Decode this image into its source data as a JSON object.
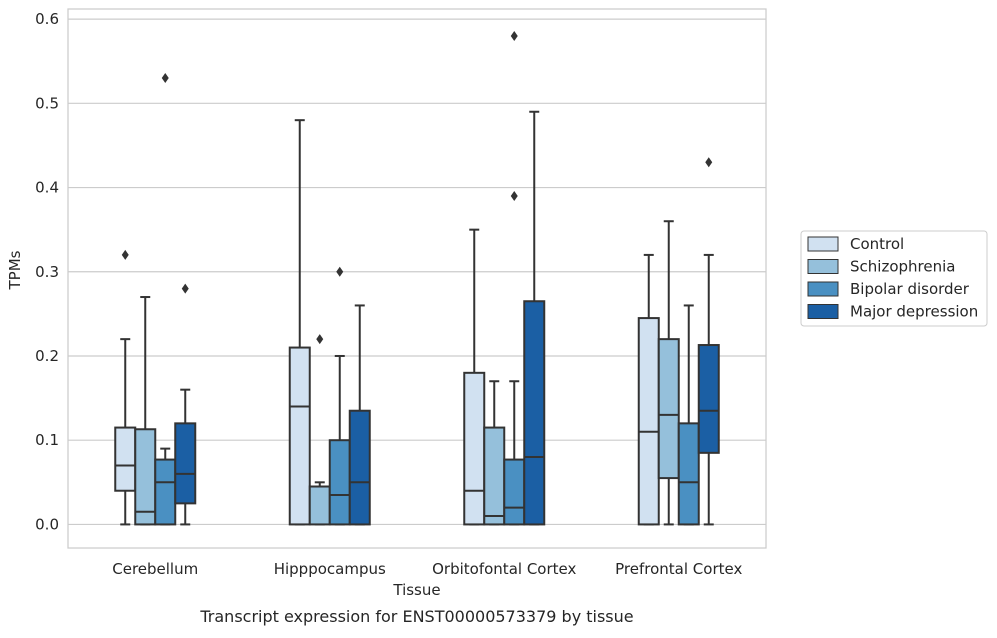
{
  "chart_data": {
    "type": "boxplot",
    "title": "",
    "caption": "Transcript expression for ENST00000573379 by tissue",
    "xlabel": "Tissue",
    "ylabel": "TPMs",
    "ylim": [
      -0.028,
      0.612
    ],
    "yticks": [
      0.0,
      0.1,
      0.2,
      0.3,
      0.4,
      0.5,
      0.6
    ],
    "ytick_labels": [
      "0.0",
      "0.1",
      "0.2",
      "0.3",
      "0.4",
      "0.5",
      "0.6"
    ],
    "grid": "horizontal",
    "legend_placement": "outside-right",
    "categories": [
      "Cerebellum",
      "Hipppocampus",
      "Orbitofontal Cortex",
      "Prefrontal Cortex"
    ],
    "series": [
      {
        "name": "Control",
        "color": "#d1e1f1",
        "boxes": [
          {
            "whislo": 0.0,
            "q1": 0.04,
            "med": 0.07,
            "q3": 0.115,
            "whishi": 0.22,
            "fliers": [
              0.32
            ]
          },
          {
            "whislo": 0.0,
            "q1": 0.0,
            "med": 0.14,
            "q3": 0.21,
            "whishi": 0.48,
            "fliers": []
          },
          {
            "whislo": 0.0,
            "q1": 0.0,
            "med": 0.04,
            "q3": 0.18,
            "whishi": 0.35,
            "fliers": []
          },
          {
            "whislo": 0.0,
            "q1": 0.0,
            "med": 0.11,
            "q3": 0.245,
            "whishi": 0.32,
            "fliers": []
          }
        ]
      },
      {
        "name": "Schizophrenia",
        "color": "#95c0db",
        "boxes": [
          {
            "whislo": 0.0,
            "q1": 0.0,
            "med": 0.015,
            "q3": 0.113,
            "whishi": 0.27,
            "fliers": []
          },
          {
            "whislo": 0.0,
            "q1": 0.0,
            "med": 0.045,
            "q3": 0.045,
            "whishi": 0.05,
            "fliers": [
              0.22
            ]
          },
          {
            "whislo": 0.0,
            "q1": 0.0,
            "med": 0.01,
            "q3": 0.115,
            "whishi": 0.17,
            "fliers": []
          },
          {
            "whislo": 0.0,
            "q1": 0.055,
            "med": 0.13,
            "q3": 0.22,
            "whishi": 0.36,
            "fliers": []
          }
        ]
      },
      {
        "name": "Bipolar disorder",
        "color": "#4a90c2",
        "boxes": [
          {
            "whislo": 0.0,
            "q1": 0.0,
            "med": 0.05,
            "q3": 0.077,
            "whishi": 0.09,
            "fliers": [
              0.53
            ]
          },
          {
            "whislo": 0.0,
            "q1": 0.0,
            "med": 0.035,
            "q3": 0.1,
            "whishi": 0.2,
            "fliers": [
              0.3
            ]
          },
          {
            "whislo": 0.0,
            "q1": 0.0,
            "med": 0.02,
            "q3": 0.077,
            "whishi": 0.17,
            "fliers": [
              0.39,
              0.58
            ]
          },
          {
            "whislo": 0.0,
            "q1": 0.0,
            "med": 0.05,
            "q3": 0.12,
            "whishi": 0.26,
            "fliers": []
          }
        ]
      },
      {
        "name": "Major depression",
        "color": "#1b5fa4",
        "boxes": [
          {
            "whislo": 0.0,
            "q1": 0.025,
            "med": 0.06,
            "q3": 0.12,
            "whishi": 0.16,
            "fliers": [
              0.28
            ]
          },
          {
            "whislo": 0.0,
            "q1": 0.0,
            "med": 0.05,
            "q3": 0.135,
            "whishi": 0.26,
            "fliers": []
          },
          {
            "whislo": 0.0,
            "q1": 0.0,
            "med": 0.08,
            "q3": 0.265,
            "whishi": 0.49,
            "fliers": []
          },
          {
            "whislo": 0.0,
            "q1": 0.085,
            "med": 0.135,
            "q3": 0.213,
            "whishi": 0.32,
            "fliers": [
              0.43
            ]
          }
        ]
      }
    ]
  }
}
